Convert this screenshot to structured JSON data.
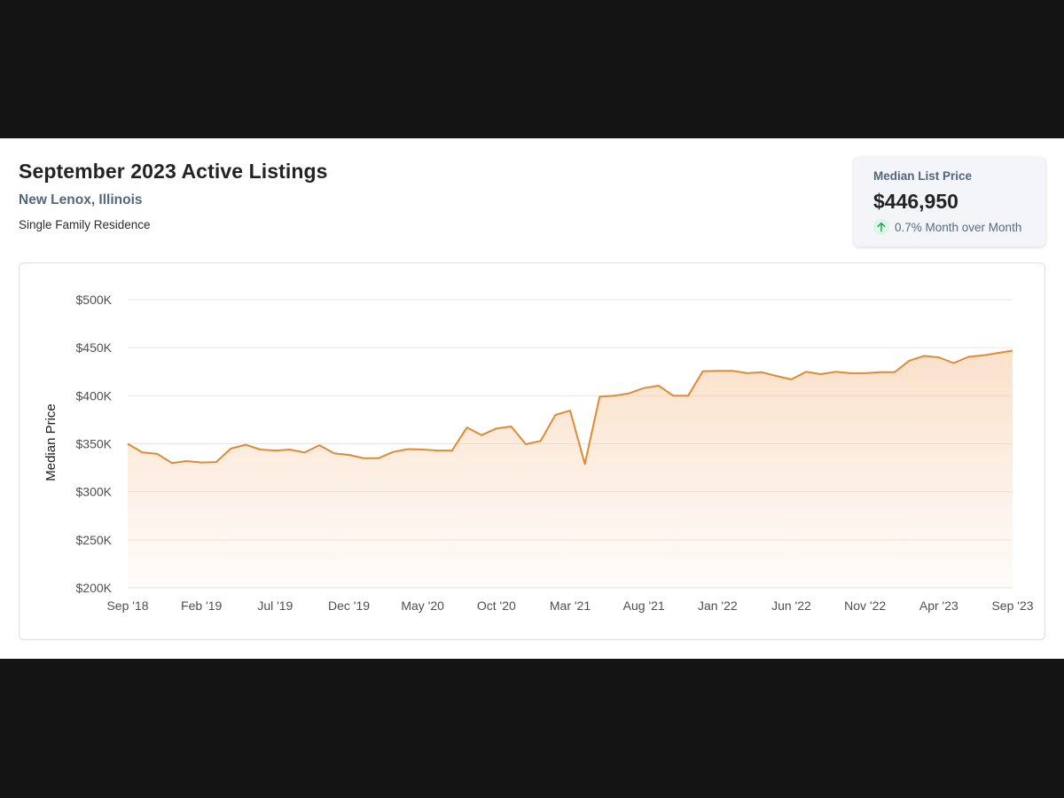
{
  "header": {
    "title": "September 2023 Active Listings",
    "location": "New Lenox, Illinois",
    "property_type": "Single Family Residence"
  },
  "stat_card": {
    "label": "Median List Price",
    "value": "$446,950",
    "change": "0.7% Month over Month",
    "icon": "arrow-up-icon",
    "icon_color": "#2aa05a",
    "icon_bg": "#dcf5e4"
  },
  "chart_data": {
    "type": "area",
    "xlabel": "",
    "ylabel": "Median Price",
    "ylim": [
      200000,
      500000
    ],
    "y_ticks": [
      200000,
      250000,
      300000,
      350000,
      400000,
      450000,
      500000
    ],
    "y_tick_labels": [
      "$200K",
      "$250K",
      "$300K",
      "$350K",
      "$400K",
      "$450K",
      "$500K"
    ],
    "x_tick_labels": [
      "Sep '18",
      "Feb '19",
      "Jul '19",
      "Dec '19",
      "May '20",
      "Oct '20",
      "Mar '21",
      "Aug '21",
      "Jan '22",
      "Jun '22",
      "Nov '22",
      "Apr '23",
      "Sep '23"
    ],
    "grid": true,
    "line_color": "#e08a35",
    "fill_color": "#f6c9a0",
    "x": [
      "2018-09",
      "2018-10",
      "2018-11",
      "2018-12",
      "2019-01",
      "2019-02",
      "2019-03",
      "2019-04",
      "2019-05",
      "2019-06",
      "2019-07",
      "2019-08",
      "2019-09",
      "2019-10",
      "2019-11",
      "2019-12",
      "2020-01",
      "2020-02",
      "2020-03",
      "2020-04",
      "2020-05",
      "2020-06",
      "2020-07",
      "2020-08",
      "2020-09",
      "2020-10",
      "2020-11",
      "2020-12",
      "2021-01",
      "2021-02",
      "2021-03",
      "2021-04",
      "2021-05",
      "2021-06",
      "2021-07",
      "2021-08",
      "2021-09",
      "2021-10",
      "2021-11",
      "2021-12",
      "2022-01",
      "2022-02",
      "2022-03",
      "2022-04",
      "2022-05",
      "2022-06",
      "2022-07",
      "2022-08",
      "2022-09",
      "2022-10",
      "2022-11",
      "2022-12",
      "2023-01",
      "2023-02",
      "2023-03",
      "2023-04",
      "2023-05",
      "2023-06",
      "2023-07",
      "2023-08",
      "2023-09"
    ],
    "values": [
      350000,
      341000,
      339500,
      330000,
      332000,
      330500,
      331000,
      345000,
      349000,
      344000,
      343000,
      344000,
      341000,
      348500,
      340000,
      338500,
      335000,
      335000,
      341500,
      344500,
      344000,
      343000,
      343000,
      367000,
      359000,
      366000,
      368000,
      349500,
      353000,
      380000,
      384500,
      329000,
      399000,
      400000,
      402500,
      408000,
      410500,
      400000,
      400000,
      425500,
      426000,
      426000,
      423500,
      424500,
      420500,
      417000,
      425000,
      422500,
      425000,
      423500,
      423500,
      424500,
      424500,
      436500,
      441500,
      440000,
      434000,
      440500,
      442000,
      444500,
      446950
    ],
    "title": ""
  }
}
